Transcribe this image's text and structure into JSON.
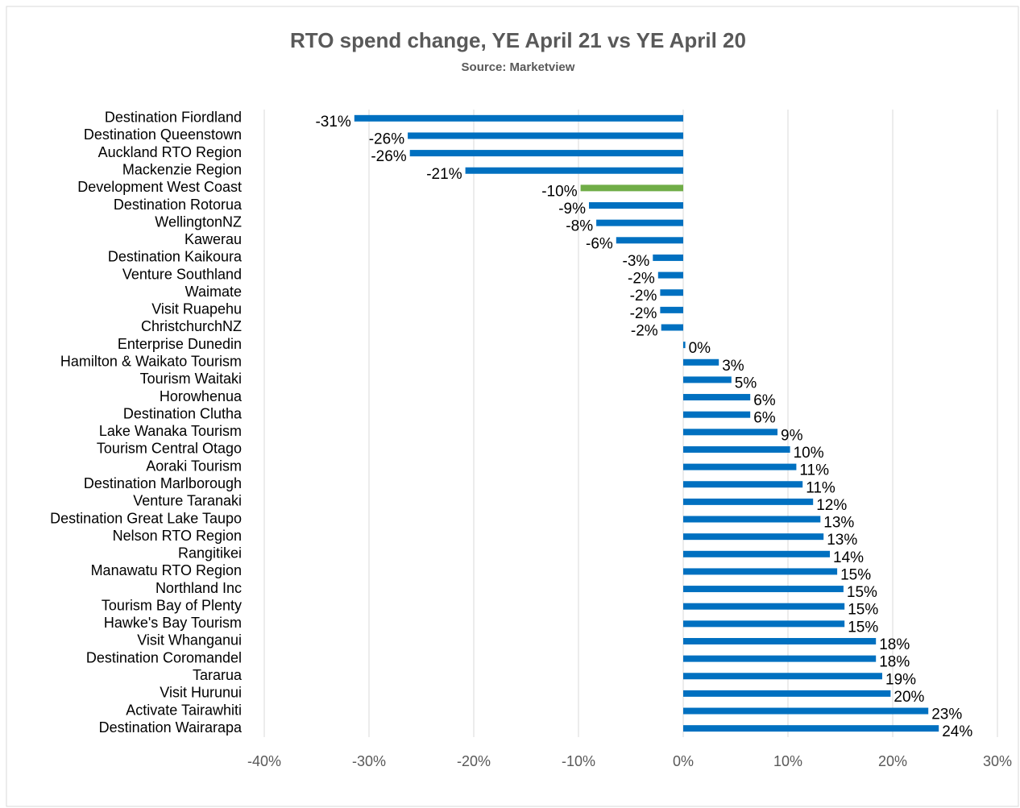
{
  "chart_data": {
    "type": "hbar",
    "title": "RTO spend change, YE April 21 vs YE April 20",
    "subtitle": "Source: Marketview",
    "categories": [
      "Destination Fiordland",
      "Destination Queenstown",
      "Auckland RTO Region",
      "Mackenzie Region",
      "Development West Coast",
      "Destination Rotorua",
      "WellingtonNZ",
      "Kawerau",
      "Destination Kaikoura",
      "Venture Southland",
      "Waimate",
      "Visit Ruapehu",
      "ChristchurchNZ",
      "Enterprise Dunedin",
      "Hamilton & Waikato Tourism",
      "Tourism Waitaki",
      "Horowhenua",
      "Destination Clutha",
      "Lake Wanaka Tourism",
      "Tourism Central Otago",
      "Aoraki Tourism",
      "Destination Marlborough",
      "Venture Taranaki",
      "Destination Great Lake Taupo",
      "Nelson RTO Region",
      "Rangitikei",
      "Manawatu RTO Region",
      "Northland Inc",
      "Tourism Bay of Plenty",
      "Hawke's Bay Tourism",
      "Visit Whanganui",
      "Destination Coromandel",
      "Tararua",
      "Visit Hurunui",
      "Activate Tairawhiti",
      "Destination Wairarapa"
    ],
    "values": [
      -31.4,
      -26.3,
      -26.1,
      -20.8,
      -9.8,
      -9.0,
      -8.3,
      -6.4,
      -2.9,
      -2.4,
      -2.2,
      -2.2,
      -2.1,
      0.2,
      3.4,
      4.6,
      6.4,
      6.4,
      9.0,
      10.2,
      10.8,
      11.4,
      12.4,
      13.1,
      13.4,
      14.0,
      14.7,
      15.3,
      15.4,
      15.4,
      18.4,
      18.4,
      19.0,
      19.8,
      23.4,
      24.4
    ],
    "value_labels": [
      "-31%",
      "-26%",
      "-26%",
      "-21%",
      "-10%",
      "-9%",
      "-8%",
      "-6%",
      "-3%",
      "-2%",
      "-2%",
      "-2%",
      "-2%",
      "0%",
      "3%",
      "5%",
      "6%",
      "6%",
      "9%",
      "10%",
      "11%",
      "11%",
      "12%",
      "13%",
      "13%",
      "14%",
      "15%",
      "15%",
      "15%",
      "15%",
      "18%",
      "18%",
      "19%",
      "20%",
      "23%",
      "24%"
    ],
    "colors": [
      "#0070c0",
      "#0070c0",
      "#0070c0",
      "#0070c0",
      "#70ad47",
      "#0070c0",
      "#0070c0",
      "#0070c0",
      "#0070c0",
      "#0070c0",
      "#0070c0",
      "#0070c0",
      "#0070c0",
      "#0070c0",
      "#0070c0",
      "#0070c0",
      "#0070c0",
      "#0070c0",
      "#0070c0",
      "#0070c0",
      "#0070c0",
      "#0070c0",
      "#0070c0",
      "#0070c0",
      "#0070c0",
      "#0070c0",
      "#0070c0",
      "#0070c0",
      "#0070c0",
      "#0070c0",
      "#0070c0",
      "#0070c0",
      "#0070c0",
      "#0070c0",
      "#0070c0",
      "#0070c0"
    ],
    "xlim": [
      -40,
      30
    ],
    "xticks": [
      {
        "value": -40,
        "label": "-40%"
      },
      {
        "value": -30,
        "label": "-30%"
      },
      {
        "value": -20,
        "label": "-20%"
      },
      {
        "value": -10,
        "label": "-10%"
      },
      {
        "value": 0,
        "label": "0%"
      },
      {
        "value": 10,
        "label": "10%"
      },
      {
        "value": 20,
        "label": "20%"
      },
      {
        "value": 30,
        "label": "30%"
      }
    ],
    "grid": true
  }
}
